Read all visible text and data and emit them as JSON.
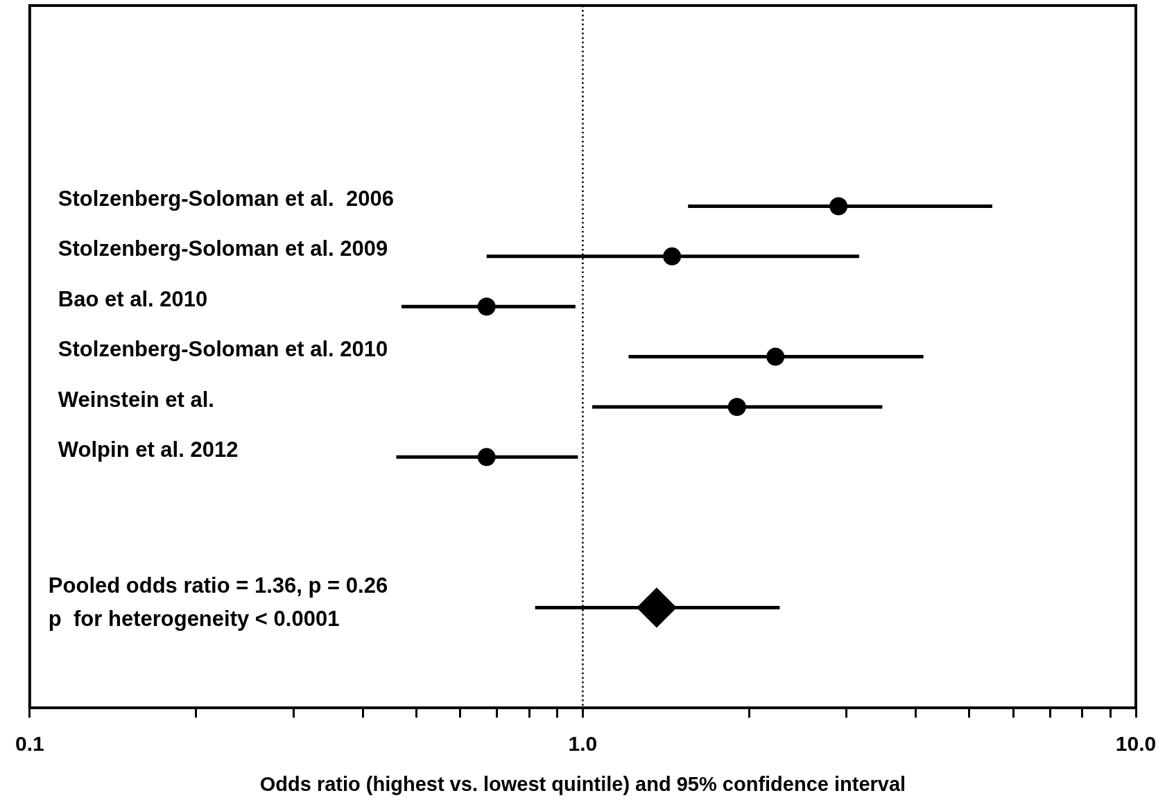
{
  "chart_data": {
    "type": "scatter",
    "orientation": "horizontal",
    "xlabel": "Odds ratio (highest vs. lowest quintile) and 95% confidence interval",
    "categories": [
      null,
      null,
      null,
      null,
      "Stolzenberg-Soloman et al.  2006",
      "Stolzenberg-Soloman et al. 2009",
      "Bao et al. 2010",
      "Stolzenberg-Soloman et al. 2010",
      "Weinstein et al.",
      "Wolpin et al. 2012",
      null,
      null,
      null,
      null,
      null
    ],
    "series": [
      {
        "color": "#000000",
        "marker": "circle",
        "values": [
          null,
          null,
          null,
          null,
          2.9,
          1.45,
          0.67,
          2.23,
          1.9,
          0.67,
          null,
          null,
          null,
          null,
          null
        ],
        "errors": [
          null,
          null,
          null,
          null,
          [
            1.55,
            5.5
          ],
          [
            0.67,
            3.16
          ],
          [
            0.47,
            0.97
          ],
          [
            1.21,
            4.13
          ],
          [
            1.04,
            3.48
          ],
          [
            0.46,
            0.98
          ],
          null,
          null,
          null,
          null,
          null
        ]
      },
      {
        "color": "#000000",
        "marker": "diamond",
        "values": [
          null,
          null,
          null,
          null,
          null,
          null,
          null,
          null,
          null,
          null,
          null,
          null,
          1.36,
          null,
          null
        ],
        "errors": [
          null,
          null,
          null,
          null,
          null,
          null,
          null,
          null,
          null,
          null,
          null,
          null,
          [
            0.82,
            2.27
          ],
          null,
          null
        ]
      }
    ],
    "log": "x",
    "xlim": [
      0.1,
      10
    ],
    "xticks": [
      {
        "value": 0.1,
        "label": "0.1"
      },
      {
        "value": 0.2,
        "label": null
      },
      {
        "value": 0.3,
        "label": null
      },
      {
        "value": 0.4,
        "label": null
      },
      {
        "value": 0.5,
        "label": null
      },
      {
        "value": 0.6,
        "label": null
      },
      {
        "value": 0.7,
        "label": null
      },
      {
        "value": 0.8,
        "label": null
      },
      {
        "value": 0.9,
        "label": null
      },
      {
        "value": 1,
        "label": "1.0"
      },
      {
        "value": 2,
        "label": null
      },
      {
        "value": 3,
        "label": null
      },
      {
        "value": 4,
        "label": null
      },
      {
        "value": 5,
        "label": null
      },
      {
        "value": 6,
        "label": null
      },
      {
        "value": 7,
        "label": null
      },
      {
        "value": 8,
        "label": null
      },
      {
        "value": 9,
        "label": null
      },
      {
        "value": 10,
        "label": "10.0"
      }
    ],
    "ref_lines": [
      {
        "axis": "x",
        "value": 1,
        "line_style": "dotted",
        "color": "#000000"
      }
    ],
    "annotations": [
      "Pooled odds ratio = 1.36, p = 0.26",
      "p  for heterogeneity < 0.0001"
    ],
    "legend": false,
    "grid": false
  }
}
